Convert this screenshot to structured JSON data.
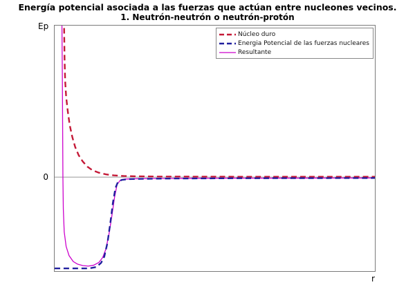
{
  "chart_data": {
    "type": "line",
    "title": "Energía potencial asociada a las fuerzas que actúan entre nucleones vecinos.",
    "subtitle": "1. Neutrón-neutrón o neutrón-protón",
    "ylabel": "Ep",
    "xlabel": "r",
    "zero_label": "0",
    "xlim": [
      0,
      10
    ],
    "ylim": [
      -1.03,
      1.66
    ],
    "grid": false,
    "legend_position": "top-right",
    "frame_color": "#7a7a7a",
    "zero_line_color": "#999999",
    "series": [
      {
        "name": "Núcleo duro",
        "color": "#c41937",
        "dash": "dashed",
        "z": 0,
        "points": [
          [
            0.27,
            3.2
          ],
          [
            0.295,
            1.66
          ],
          [
            0.31,
            1.3
          ],
          [
            0.33,
            1.05
          ],
          [
            0.36,
            0.88
          ],
          [
            0.41,
            0.72
          ],
          [
            0.47,
            0.57
          ],
          [
            0.55,
            0.44
          ],
          [
            0.64,
            0.33
          ],
          [
            0.75,
            0.24
          ],
          [
            0.88,
            0.17
          ],
          [
            1.02,
            0.115
          ],
          [
            1.18,
            0.075
          ],
          [
            1.38,
            0.048
          ],
          [
            1.6,
            0.03
          ],
          [
            1.85,
            0.019
          ],
          [
            2.15,
            0.012
          ],
          [
            2.6,
            0.008
          ],
          [
            3.2,
            0.006
          ],
          [
            4.2,
            0.005
          ],
          [
            6.0,
            0.004
          ],
          [
            8.0,
            0.004
          ],
          [
            10,
            0.004
          ]
        ]
      },
      {
        "name": "Energia Potencial de las fuerzas nucleares",
        "color": "#201f9e",
        "dash": "dashed",
        "z": 2,
        "points": [
          [
            0,
            -1.0
          ],
          [
            0.6,
            -1.0
          ],
          [
            1.0,
            -1.0
          ],
          [
            1.15,
            -0.995
          ],
          [
            1.3,
            -0.985
          ],
          [
            1.45,
            -0.94
          ],
          [
            1.55,
            -0.87
          ],
          [
            1.65,
            -0.72
          ],
          [
            1.74,
            -0.5
          ],
          [
            1.82,
            -0.28
          ],
          [
            1.9,
            -0.12
          ],
          [
            1.98,
            -0.05
          ],
          [
            2.1,
            -0.03
          ],
          [
            2.3,
            -0.022
          ],
          [
            2.8,
            -0.019
          ],
          [
            3.5,
            -0.016
          ],
          [
            4.5,
            -0.014
          ],
          [
            6,
            -0.012
          ],
          [
            8,
            -0.011
          ],
          [
            10,
            -0.01
          ]
        ]
      },
      {
        "name": "Resultante",
        "color": "#cc00cc",
        "dash": "solid",
        "z": 1,
        "points": [
          [
            0.21,
            3.0
          ],
          [
            0.228,
            1.66
          ],
          [
            0.24,
            1.1
          ],
          [
            0.25,
            0.55
          ],
          [
            0.258,
            0.0
          ],
          [
            0.27,
            -0.35
          ],
          [
            0.3,
            -0.6
          ],
          [
            0.36,
            -0.76
          ],
          [
            0.45,
            -0.86
          ],
          [
            0.58,
            -0.925
          ],
          [
            0.72,
            -0.955
          ],
          [
            0.88,
            -0.97
          ],
          [
            1.05,
            -0.975
          ],
          [
            1.22,
            -0.965
          ],
          [
            1.38,
            -0.935
          ],
          [
            1.5,
            -0.88
          ],
          [
            1.6,
            -0.79
          ],
          [
            1.7,
            -0.62
          ],
          [
            1.79,
            -0.42
          ],
          [
            1.87,
            -0.22
          ],
          [
            1.95,
            -0.08
          ],
          [
            2.05,
            -0.035
          ],
          [
            2.2,
            -0.022
          ],
          [
            2.5,
            -0.018
          ],
          [
            3.0,
            -0.016
          ],
          [
            4.0,
            -0.014
          ],
          [
            5.5,
            -0.012
          ],
          [
            7.5,
            -0.011
          ],
          [
            10,
            -0.01
          ]
        ]
      }
    ]
  }
}
